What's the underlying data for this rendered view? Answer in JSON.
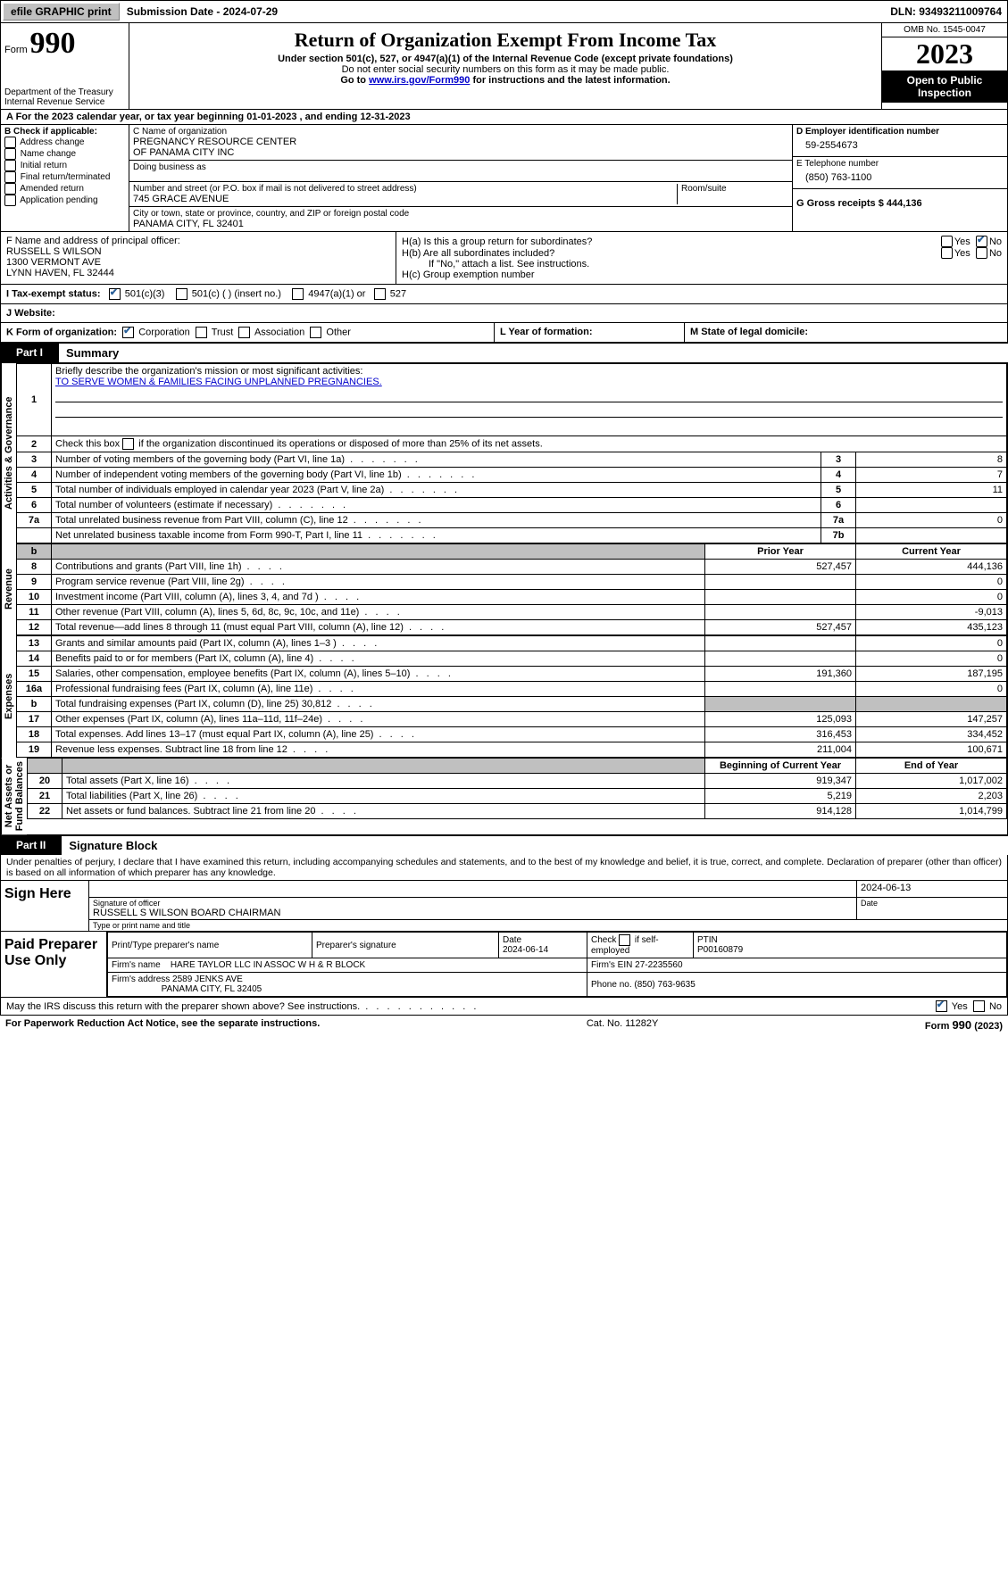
{
  "topbar": {
    "efile_btn": "efile GRAPHIC print",
    "submission": "Submission Date - 2024-07-29",
    "dln": "DLN: 93493211009764"
  },
  "header": {
    "form_prefix": "Form",
    "form_number": "990",
    "dept": "Department of the Treasury",
    "irs": "Internal Revenue Service",
    "title": "Return of Organization Exempt From Income Tax",
    "sub1": "Under section 501(c), 527, or 4947(a)(1) of the Internal Revenue Code (except private foundations)",
    "sub2": "Do not enter social security numbers on this form as it may be made public.",
    "sub3_pre": "Go to ",
    "sub3_link": "www.irs.gov/Form990",
    "sub3_post": " for instructions and the latest information.",
    "omb": "OMB No. 1545-0047",
    "year": "2023",
    "open": "Open to Public Inspection"
  },
  "row_a": "A For the 2023 calendar year, or tax year beginning 01-01-2023   , and ending 12-31-2023",
  "col_b": {
    "head": "B Check if applicable:",
    "items": [
      "Address change",
      "Name change",
      "Initial return",
      "Final return/terminated",
      "Amended return",
      "Application pending"
    ]
  },
  "col_c": {
    "name_label": "C Name of organization",
    "name_val": "PREGNANCY RESOURCE CENTER\nOF PANAMA CITY INC",
    "dba_label": "Doing business as",
    "street_label": "Number and street (or P.O. box if mail is not delivered to street address)",
    "room_label": "Room/suite",
    "street_val": "745 GRACE AVENUE",
    "city_label": "City or town, state or province, country, and ZIP or foreign postal code",
    "city_val": "PANAMA CITY, FL  32401"
  },
  "col_d": {
    "ein_label": "D Employer identification number",
    "ein_val": "59-2554673",
    "phone_label": "E Telephone number",
    "phone_val": "(850) 763-1100",
    "gross_label": "G Gross receipts $ 444,136"
  },
  "officer": {
    "label": "F  Name and address of principal officer:",
    "name": "RUSSELL S WILSON",
    "addr1": "1300 VERMONT AVE",
    "addr2": "LYNN HAVEN, FL  32444"
  },
  "h_box": {
    "ha": "H(a)  Is this a group return for subordinates?",
    "hb": "H(b)  Are all subordinates included?",
    "hb_note": "If \"No,\" attach a list. See instructions.",
    "hc": "H(c)  Group exemption number",
    "yes": "Yes",
    "no": "No"
  },
  "tax_exempt": {
    "label": "I  Tax-exempt status:",
    "c3": "501(c)(3)",
    "c": "501(c) (  ) (insert no.)",
    "a1": "4947(a)(1) or",
    "s527": "527"
  },
  "website": {
    "label": "J  Website:"
  },
  "row_k": {
    "label": "K Form of organization:",
    "corp": "Corporation",
    "trust": "Trust",
    "assoc": "Association",
    "other": "Other"
  },
  "row_l": {
    "label": "L Year of formation:"
  },
  "row_m": {
    "label": "M State of legal domicile:"
  },
  "part1": {
    "tab": "Part I",
    "title": "Summary"
  },
  "summary": {
    "governance": {
      "l1_label": "Briefly describe the organization's mission or most significant activities:",
      "l1_val": "TO SERVE WOMEN & FAMILIES FACING UNPLANNED PREGNANCIES.",
      "l2": "Check this box        if the organization discontinued its operations or disposed of more than 25% of its net assets.",
      "rows": [
        {
          "n": "3",
          "d": "Number of voting members of the governing body (Part VI, line 1a)",
          "i": "3",
          "v": "8"
        },
        {
          "n": "4",
          "d": "Number of independent voting members of the governing body (Part VI, line 1b)",
          "i": "4",
          "v": "7"
        },
        {
          "n": "5",
          "d": "Total number of individuals employed in calendar year 2023 (Part V, line 2a)",
          "i": "5",
          "v": "11"
        },
        {
          "n": "6",
          "d": "Total number of volunteers (estimate if necessary)",
          "i": "6",
          "v": ""
        },
        {
          "n": "7a",
          "d": "Total unrelated business revenue from Part VIII, column (C), line 12",
          "i": "7a",
          "v": "0"
        },
        {
          "n": "",
          "d": "Net unrelated business taxable income from Form 990-T, Part I, line 11",
          "i": "7b",
          "v": ""
        }
      ]
    },
    "col_headers": {
      "prior": "Prior Year",
      "curr": "Current Year"
    },
    "revenue": [
      {
        "n": "8",
        "d": "Contributions and grants (Part VIII, line 1h)",
        "p": "527,457",
        "c": "444,136"
      },
      {
        "n": "9",
        "d": "Program service revenue (Part VIII, line 2g)",
        "p": "",
        "c": "0"
      },
      {
        "n": "10",
        "d": "Investment income (Part VIII, column (A), lines 3, 4, and 7d )",
        "p": "",
        "c": "0"
      },
      {
        "n": "11",
        "d": "Other revenue (Part VIII, column (A), lines 5, 6d, 8c, 9c, 10c, and 11e)",
        "p": "",
        "c": "-9,013"
      },
      {
        "n": "12",
        "d": "Total revenue—add lines 8 through 11 (must equal Part VIII, column (A), line 12)",
        "p": "527,457",
        "c": "435,123"
      }
    ],
    "expenses": [
      {
        "n": "13",
        "d": "Grants and similar amounts paid (Part IX, column (A), lines 1–3 )",
        "p": "",
        "c": "0"
      },
      {
        "n": "14",
        "d": "Benefits paid to or for members (Part IX, column (A), line 4)",
        "p": "",
        "c": "0"
      },
      {
        "n": "15",
        "d": "Salaries, other compensation, employee benefits (Part IX, column (A), lines 5–10)",
        "p": "191,360",
        "c": "187,195"
      },
      {
        "n": "16a",
        "d": "Professional fundraising fees (Part IX, column (A), line 11e)",
        "p": "",
        "c": "0"
      },
      {
        "n": "b",
        "d": "Total fundraising expenses (Part IX, column (D), line 25) 30,812",
        "p": "SHADE",
        "c": "SHADE"
      },
      {
        "n": "17",
        "d": "Other expenses (Part IX, column (A), lines 11a–11d, 11f–24e)",
        "p": "125,093",
        "c": "147,257"
      },
      {
        "n": "18",
        "d": "Total expenses. Add lines 13–17 (must equal Part IX, column (A), line 25)",
        "p": "316,453",
        "c": "334,452"
      },
      {
        "n": "19",
        "d": "Revenue less expenses. Subtract line 18 from line 12",
        "p": "211,004",
        "c": "100,671"
      }
    ],
    "net_headers": {
      "beg": "Beginning of Current Year",
      "end": "End of Year"
    },
    "net": [
      {
        "n": "20",
        "d": "Total assets (Part X, line 16)",
        "p": "919,347",
        "c": "1,017,002"
      },
      {
        "n": "21",
        "d": "Total liabilities (Part X, line 26)",
        "p": "5,219",
        "c": "2,203"
      },
      {
        "n": "22",
        "d": "Net assets or fund balances. Subtract line 21 from line 20",
        "p": "914,128",
        "c": "1,014,799"
      }
    ],
    "vlabels": {
      "gov": "Activities & Governance",
      "rev": "Revenue",
      "exp": "Expenses",
      "net": "Net Assets or\nFund Balances"
    }
  },
  "part2": {
    "tab": "Part II",
    "title": "Signature Block"
  },
  "penalties": "Under penalties of perjury, I declare that I have examined this return, including accompanying schedules and statements, and to the best of my knowledge and belief, it is true, correct, and complete. Declaration of preparer (other than officer) is based on all information of which preparer has any knowledge.",
  "sign": {
    "left": "Sign Here",
    "date": "2024-06-13",
    "sig_label": "Signature of officer",
    "sig_name": "RUSSELL S WILSON  BOARD CHAIRMAN",
    "type_label": "Type or print name and title",
    "date_label": "Date"
  },
  "prep": {
    "left": "Paid Preparer Use Only",
    "h1": "Print/Type preparer's name",
    "h2": "Preparer's signature",
    "h3": "Date",
    "h3v": "2024-06-14",
    "h4": "Check        if self-employed",
    "h5": "PTIN",
    "h5v": "P00160879",
    "firm_label": "Firm's name",
    "firm_val": "HARE TAYLOR LLC IN ASSOC W H & R BLOCK",
    "fein_label": "Firm's EIN",
    "fein_val": "27-2235560",
    "addr_label": "Firm's address",
    "addr_val": "2589 JENKS AVE",
    "addr_val2": "PANAMA CITY, FL  32405",
    "fphone_label": "Phone no.",
    "fphone_val": "(850) 763-9635"
  },
  "discuss": "May the IRS discuss this return with the preparer shown above? See instructions.",
  "footer": {
    "left": "For Paperwork Reduction Act Notice, see the separate instructions.",
    "mid": "Cat. No. 11282Y",
    "right": "Form 990 (2023)"
  }
}
